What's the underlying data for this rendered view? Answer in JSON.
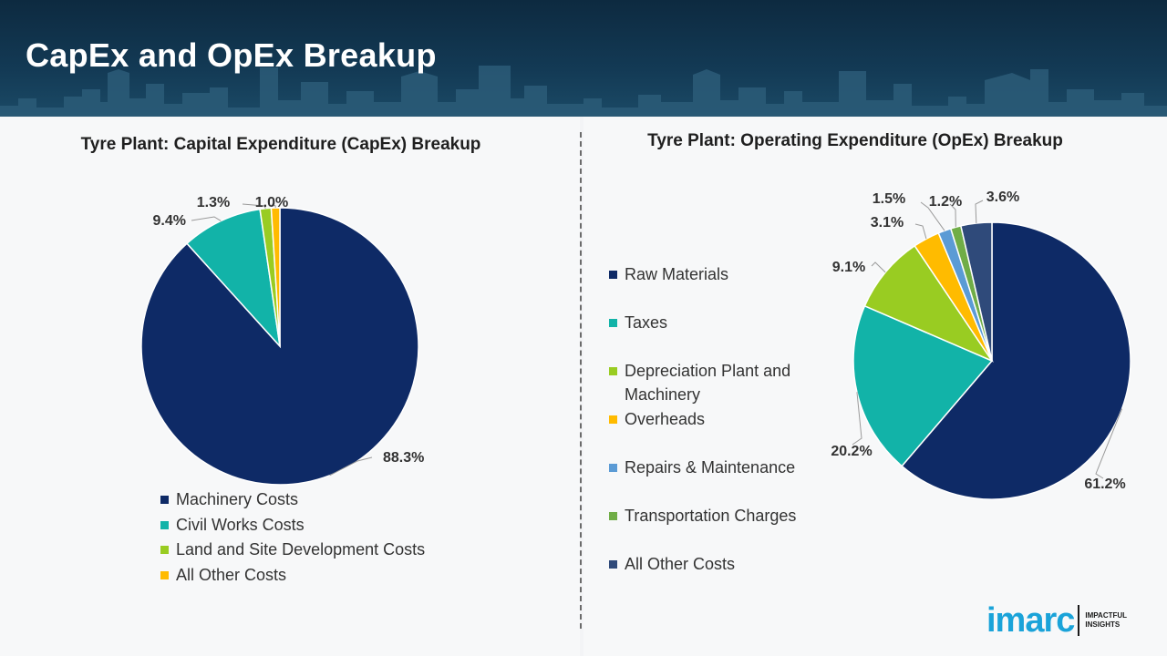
{
  "header": {
    "title": "CapEx and OpEx Breakup"
  },
  "chart_data": [
    {
      "type": "pie",
      "title": "Tyre Plant: Capital Expenditure (CapEx) Breakup",
      "categories": [
        "Machinery Costs",
        "Civil Works Costs",
        "Land and Site Development Costs",
        "All Other Costs"
      ],
      "values": [
        88.3,
        9.4,
        1.3,
        1.0
      ],
      "labels": [
        "88.3%",
        "9.4%",
        "1.3%",
        "1.0%"
      ],
      "colors": [
        "#0e2a66",
        "#12b3a8",
        "#99cc22",
        "#ffbb00"
      ],
      "legend_position": "bottom"
    },
    {
      "type": "pie",
      "title": "Tyre Plant: Operating Expenditure (OpEx) Breakup",
      "categories": [
        "Raw Materials",
        "Taxes",
        "Depreciation Plant and Machinery",
        "Overheads",
        "Repairs & Maintenance",
        "Transportation Charges",
        "All Other Costs"
      ],
      "values": [
        61.2,
        20.2,
        9.1,
        3.1,
        1.5,
        1.2,
        3.6
      ],
      "labels": [
        "61.2%",
        "20.2%",
        "9.1%",
        "3.1%",
        "1.5%",
        "1.2%",
        "3.6%"
      ],
      "colors": [
        "#0e2a66",
        "#12b3a8",
        "#99cc22",
        "#ffbb00",
        "#5b9bd5",
        "#70ad47",
        "#2f4a7a"
      ],
      "legend_position": "left"
    }
  ],
  "logo": {
    "word": "imarc",
    "tagline": "IMPACTFUL INSIGHTS"
  }
}
